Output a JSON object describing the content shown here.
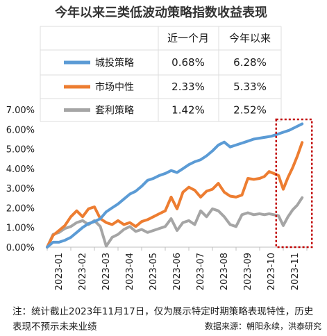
{
  "chart_data": {
    "type": "line",
    "title": "今年以来三类低波动策略指数收益表现",
    "xlabel": "",
    "ylabel": "",
    "ylim": [
      0,
      0.07
    ],
    "y_ticks": [
      "0.00%",
      "1.00%",
      "2.00%",
      "3.00%",
      "4.00%",
      "5.00%",
      "6.00%",
      "7.00%"
    ],
    "x_ticks": [
      "2023-01",
      "2023-02",
      "2023-03",
      "2023-04",
      "2023-05",
      "2023-06",
      "2023-07",
      "2023-08",
      "2023-09",
      "2023-10",
      "2023-11"
    ],
    "grid": false,
    "legend_table": {
      "columns": [
        "",
        "近一个月",
        "今年以来"
      ],
      "rows": [
        {
          "name": "城投策略",
          "color": "#5B9BD5",
          "one_month": "0.68%",
          "ytd": "6.28%"
        },
        {
          "name": "市场中性",
          "color": "#ED7D31",
          "one_month": "2.33%",
          "ytd": "5.33%"
        },
        {
          "name": "套利策略",
          "color": "#A5A5A5",
          "one_month": "1.42%",
          "ytd": "2.52%"
        }
      ]
    },
    "series": [
      {
        "name": "城投策略",
        "color": "#5B9BD5",
        "x": [
          0,
          0.25,
          0.5,
          0.75,
          1.0,
          1.25,
          1.5,
          1.75,
          2.0,
          2.25,
          2.5,
          2.75,
          3.0,
          3.25,
          3.5,
          3.75,
          4.0,
          4.25,
          4.5,
          4.75,
          5.0,
          5.25,
          5.5,
          5.75,
          6.0,
          6.25,
          6.5,
          6.75,
          7.0,
          7.25,
          7.5,
          7.75,
          8.0,
          8.25,
          8.5,
          8.75,
          9.0,
          9.25,
          9.5,
          9.75,
          10.0,
          10.25,
          10.5,
          10.8
        ],
        "values": [
          0.0,
          0.0025,
          0.0025,
          0.0035,
          0.005,
          0.0075,
          0.01,
          0.012,
          0.013,
          0.0145,
          0.018,
          0.02,
          0.022,
          0.0245,
          0.027,
          0.0285,
          0.031,
          0.034,
          0.035,
          0.0365,
          0.0375,
          0.039,
          0.038,
          0.04,
          0.042,
          0.0435,
          0.0445,
          0.0465,
          0.049,
          0.052,
          0.0535,
          0.051,
          0.052,
          0.053,
          0.054,
          0.055,
          0.0555,
          0.056,
          0.0565,
          0.0575,
          0.0585,
          0.0595,
          0.061,
          0.0628
        ]
      },
      {
        "name": "市场中性",
        "color": "#ED7D31",
        "x": [
          0,
          0.25,
          0.5,
          0.75,
          1.0,
          1.25,
          1.5,
          1.75,
          2.0,
          2.25,
          2.5,
          2.75,
          3.0,
          3.25,
          3.5,
          3.75,
          4.0,
          4.25,
          4.5,
          4.75,
          5.0,
          5.25,
          5.5,
          5.75,
          6.0,
          6.25,
          6.5,
          6.75,
          7.0,
          7.25,
          7.5,
          7.75,
          8.0,
          8.25,
          8.5,
          8.75,
          9.0,
          9.2,
          9.4,
          9.6,
          9.8,
          10.0,
          10.2,
          10.4,
          10.6,
          10.8
        ],
        "values": [
          0.0,
          0.006,
          0.0085,
          0.011,
          0.0155,
          0.0185,
          0.0155,
          0.0195,
          0.0205,
          0.0145,
          0.0125,
          0.0115,
          0.0135,
          0.0115,
          0.0125,
          0.0105,
          0.013,
          0.014,
          0.0155,
          0.017,
          0.0185,
          0.0255,
          0.0195,
          0.028,
          0.0305,
          0.029,
          0.0255,
          0.0285,
          0.0295,
          0.0325,
          0.028,
          0.026,
          0.0255,
          0.0265,
          0.035,
          0.0345,
          0.035,
          0.036,
          0.0385,
          0.0375,
          0.0365,
          0.0295,
          0.0355,
          0.0405,
          0.0465,
          0.0533
        ]
      },
      {
        "name": "套利策略",
        "color": "#A5A5A5",
        "x": [
          0,
          0.25,
          0.5,
          0.75,
          1.0,
          1.25,
          1.5,
          1.75,
          2.0,
          2.25,
          2.5,
          2.75,
          3.0,
          3.25,
          3.5,
          3.75,
          4.0,
          4.25,
          4.5,
          4.75,
          5.0,
          5.25,
          5.5,
          5.75,
          6.0,
          6.25,
          6.5,
          6.75,
          7.0,
          7.25,
          7.5,
          7.75,
          8.0,
          8.25,
          8.5,
          8.75,
          9.0,
          9.2,
          9.4,
          9.6,
          9.8,
          10.0,
          10.2,
          10.4,
          10.6,
          10.8
        ],
        "values": [
          0.0,
          0.0065,
          0.0075,
          0.0095,
          0.0105,
          0.0125,
          0.0135,
          0.0115,
          0.0135,
          0.0105,
          0.0005,
          0.005,
          0.0065,
          0.009,
          0.0105,
          0.008,
          0.009,
          0.0075,
          0.0085,
          0.0095,
          0.0105,
          0.0145,
          0.0085,
          0.0125,
          0.0135,
          0.0115,
          0.0185,
          0.0155,
          0.0195,
          0.0185,
          0.0155,
          0.0115,
          0.0105,
          0.0165,
          0.0175,
          0.0165,
          0.017,
          0.0165,
          0.017,
          0.0165,
          0.016,
          0.011,
          0.0155,
          0.019,
          0.0215,
          0.0252
        ]
      }
    ],
    "annotations": [
      {
        "type": "dotted-rectangle",
        "color": "#C00000",
        "x_range": [
          9.7,
          10.8
        ]
      }
    ]
  },
  "footnote": "注：统计截止2023年11月17日，仅为展示特定时期策略表现特性，历史表现不预示未来业绩",
  "source": "数据来源：朝阳永续，洪泰研究"
}
